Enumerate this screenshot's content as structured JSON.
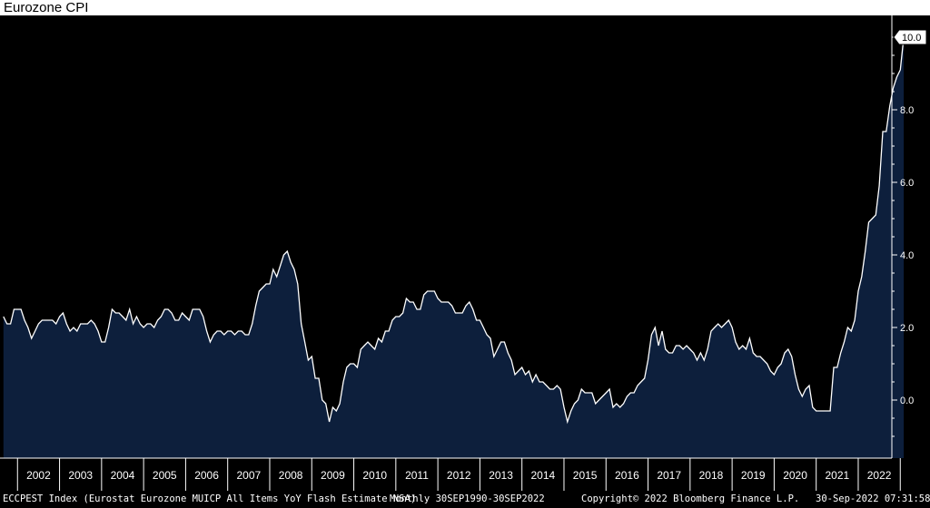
{
  "title": "Eurozone CPI",
  "last_value_label": "10.0",
  "colors": {
    "background": "#000000",
    "area_fill": "#0d1f3c",
    "line": "#ffffff",
    "axis_text": "#ffffff",
    "frame": "#ffffff"
  },
  "footer": {
    "description": "ECCPEST Index (Eurostat Eurozone MUICP All Items YoY Flash Estimate NSA)",
    "period": "Monthly 30SEP1990-30SEP2022",
    "copyright": "Copyright© 2022 Bloomberg Finance L.P.",
    "timestamp": "30-Sep-2022 07:31:58"
  },
  "chart_data": {
    "type": "area",
    "title": "Eurozone CPI",
    "xlabel": "",
    "ylabel": "",
    "x_start": "2001-09",
    "x_end": "2022-09",
    "xlim": [
      2001.67,
      2022.8
    ],
    "ylim": [
      -1.6,
      10.6
    ],
    "y_ticks": [
      0.0,
      2.0,
      4.0,
      6.0,
      8.0,
      10.0
    ],
    "y_tick_labels": [
      "0.0",
      "2.0",
      "4.0",
      "6.0",
      "8.0",
      "10.0"
    ],
    "x_tick_labels": [
      "2002",
      "2003",
      "2004",
      "2005",
      "2006",
      "2007",
      "2008",
      "2009",
      "2010",
      "2011",
      "2012",
      "2013",
      "2014",
      "2015",
      "2016",
      "2017",
      "2018",
      "2019",
      "2020",
      "2021",
      "2022"
    ],
    "y_axis_position": "right",
    "grid": false,
    "series": [
      {
        "frequency": "monthly",
        "values": [
          2.3,
          2.1,
          2.1,
          2.5,
          2.5,
          2.5,
          2.2,
          2.0,
          1.7,
          1.9,
          2.1,
          2.2,
          2.2,
          2.2,
          2.2,
          2.1,
          2.3,
          2.4,
          2.1,
          1.9,
          2.0,
          1.9,
          2.1,
          2.1,
          2.1,
          2.2,
          2.1,
          1.9,
          1.6,
          1.6,
          2.0,
          2.5,
          2.4,
          2.4,
          2.3,
          2.2,
          2.5,
          2.1,
          2.3,
          2.1,
          2.0,
          2.1,
          2.1,
          2.0,
          2.2,
          2.3,
          2.5,
          2.5,
          2.4,
          2.2,
          2.2,
          2.4,
          2.3,
          2.2,
          2.5,
          2.5,
          2.5,
          2.3,
          1.9,
          1.6,
          1.8,
          1.9,
          1.9,
          1.8,
          1.9,
          1.9,
          1.8,
          1.9,
          1.9,
          1.8,
          1.8,
          2.1,
          2.6,
          3.0,
          3.1,
          3.2,
          3.2,
          3.6,
          3.4,
          3.7,
          4.0,
          4.1,
          3.8,
          3.6,
          3.2,
          2.1,
          1.6,
          1.1,
          1.2,
          0.6,
          0.6,
          0.0,
          -0.1,
          -0.6,
          -0.2,
          -0.3,
          -0.1,
          0.5,
          0.9,
          1.0,
          1.0,
          0.9,
          1.4,
          1.5,
          1.6,
          1.5,
          1.4,
          1.7,
          1.6,
          1.9,
          1.9,
          2.2,
          2.3,
          2.3,
          2.4,
          2.8,
          2.7,
          2.7,
          2.5,
          2.5,
          2.9,
          3.0,
          3.0,
          3.0,
          2.8,
          2.7,
          2.7,
          2.7,
          2.6,
          2.4,
          2.4,
          2.4,
          2.6,
          2.7,
          2.5,
          2.2,
          2.2,
          2.0,
          1.8,
          1.7,
          1.2,
          1.4,
          1.6,
          1.6,
          1.3,
          1.1,
          0.7,
          0.8,
          0.9,
          0.7,
          0.8,
          0.5,
          0.7,
          0.5,
          0.5,
          0.4,
          0.3,
          0.3,
          0.4,
          0.3,
          -0.2,
          -0.6,
          -0.3,
          -0.1,
          0.0,
          0.3,
          0.2,
          0.2,
          0.2,
          -0.1,
          0.0,
          0.1,
          0.2,
          0.3,
          -0.2,
          -0.1,
          -0.2,
          -0.1,
          0.1,
          0.2,
          0.2,
          0.4,
          0.5,
          0.6,
          1.1,
          1.8,
          2.0,
          1.5,
          1.9,
          1.4,
          1.3,
          1.3,
          1.5,
          1.5,
          1.4,
          1.5,
          1.4,
          1.3,
          1.1,
          1.3,
          1.1,
          1.4,
          1.9,
          2.0,
          2.1,
          2.0,
          2.1,
          2.2,
          2.0,
          1.6,
          1.4,
          1.5,
          1.4,
          1.7,
          1.3,
          1.2,
          1.2,
          1.1,
          1.0,
          0.8,
          0.7,
          0.9,
          1.0,
          1.3,
          1.4,
          1.2,
          0.7,
          0.3,
          0.1,
          0.3,
          0.4,
          -0.2,
          -0.3,
          -0.3,
          -0.3,
          -0.3,
          -0.3,
          0.9,
          0.9,
          1.3,
          1.6,
          2.0,
          1.9,
          2.2,
          3.0,
          3.4,
          4.1,
          4.9,
          5.0,
          5.1,
          5.9,
          7.4,
          7.4,
          8.1,
          8.6,
          8.9,
          9.1,
          10.0
        ]
      }
    ]
  }
}
